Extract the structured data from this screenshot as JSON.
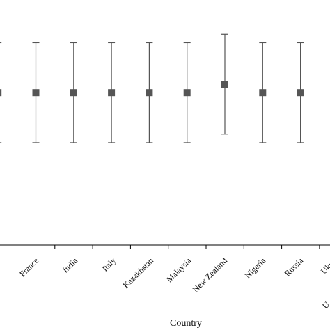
{
  "chart_data": {
    "type": "scatter",
    "subtype": "error-bar",
    "title": "",
    "xlabel": "Country",
    "ylabel": "",
    "categories": [
      "",
      "France",
      "India",
      "Italy",
      "Kazakhstan",
      "Malaysia",
      "New Zealand",
      "Nigeria",
      "Russia",
      "Ukraine",
      "U"
    ],
    "visible_labels": [
      "France",
      "India",
      "Italy",
      "Kazakhstan",
      "Malaysia",
      "New Zealand",
      "Nigeria",
      "Russia",
      "Ukrai",
      "U"
    ],
    "series": [
      {
        "values": [
          0.0,
          0.0,
          0.0,
          0.0,
          0.0,
          0.0,
          0.16,
          0.0,
          0.0
        ],
        "lower": [
          -1.0,
          -1.0,
          -1.0,
          -1.0,
          -1.0,
          -1.0,
          -0.83,
          -1.0,
          -1.0
        ],
        "upper": [
          1.0,
          1.0,
          1.0,
          1.0,
          1.0,
          1.0,
          1.17,
          1.0,
          1.0
        ],
        "color": "#555555"
      }
    ],
    "ylim": [
      -3.05,
      1.55
    ],
    "grid": false,
    "legend": "none",
    "colors": {
      "marker": "#555555",
      "axis": "#000000",
      "errorbar": "#555555"
    }
  }
}
